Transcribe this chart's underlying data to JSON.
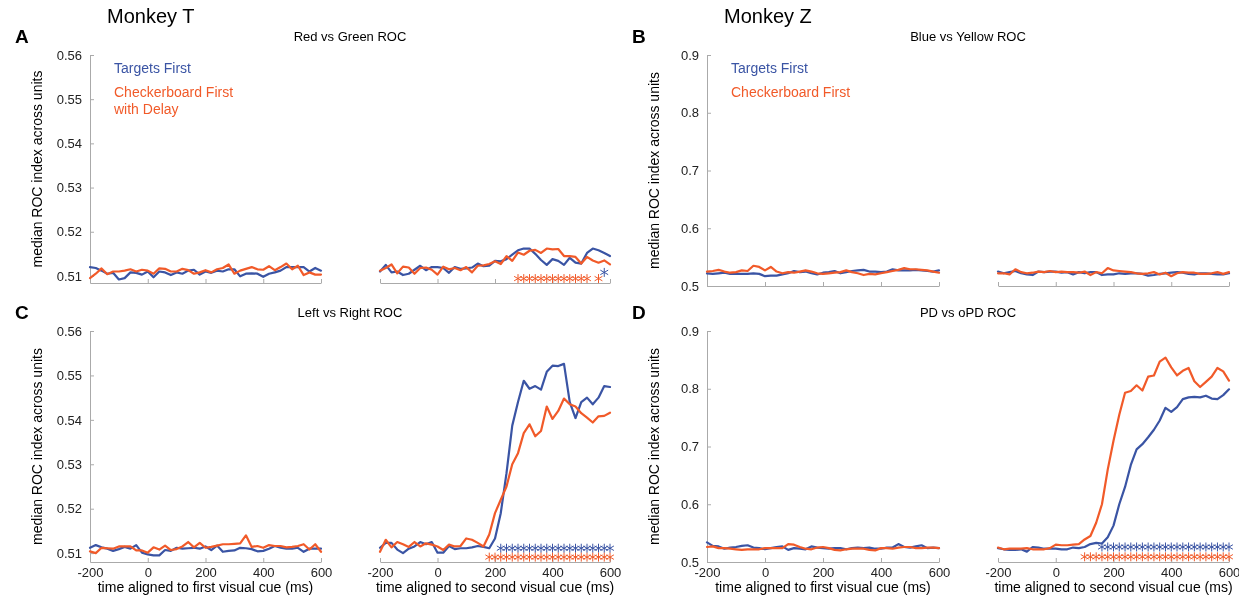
{
  "chart_data": [
    {
      "type": "line",
      "title": "Red vs Green ROC",
      "ylabel": "median ROC index across units",
      "annotations": [
        "A",
        "Monkey T"
      ],
      "legend": "top left",
      "tick_labels": "y",
      "xlim": [
        -200,
        600
      ],
      "xticks": [
        -200,
        0,
        200,
        400,
        600
      ],
      "ylim": [
        0.5084,
        0.56
      ],
      "yticks": [
        0.51,
        0.52,
        0.53,
        0.54,
        0.55,
        0.56
      ],
      "x": [
        -200,
        -180,
        -160,
        -140,
        -120,
        -100,
        -80,
        -60,
        -40,
        -20,
        0,
        20,
        40,
        60,
        80,
        100,
        120,
        140,
        160,
        180,
        200,
        220,
        240,
        260,
        280,
        300,
        320,
        340,
        360,
        380,
        400,
        420,
        440,
        460,
        480,
        500,
        520,
        540,
        560,
        580,
        600
      ],
      "series": [
        {
          "name": "Targets First",
          "color": "#3a54a4",
          "values": [
            0.512,
            0.5118,
            0.5112,
            0.5105,
            0.5107,
            0.5092,
            0.5095,
            0.5108,
            0.5107,
            0.5103,
            0.511,
            0.5097,
            0.511,
            0.5108,
            0.5102,
            0.5108,
            0.5105,
            0.5112,
            0.5114,
            0.5103,
            0.511,
            0.5107,
            0.5112,
            0.511,
            0.5115,
            0.5115,
            0.5099,
            0.5105,
            0.5106,
            0.5105,
            0.5098,
            0.5105,
            0.5108,
            0.5112,
            0.512,
            0.512,
            0.512,
            0.512,
            0.511,
            0.5118,
            0.5112
          ]
        },
        {
          "name": "Checkerboard First with Delay",
          "color": "#f15a29",
          "values": [
            0.5095,
            0.5105,
            0.5117,
            0.5104,
            0.511,
            0.511,
            0.5112,
            0.5115,
            0.511,
            0.5114,
            0.5112,
            0.5105,
            0.5117,
            0.5116,
            0.511,
            0.511,
            0.5116,
            0.5113,
            0.5105,
            0.5108,
            0.5113,
            0.5108,
            0.5115,
            0.5118,
            0.5126,
            0.5105,
            0.5112,
            0.5116,
            0.512,
            0.5115,
            0.5114,
            0.5122,
            0.5113,
            0.512,
            0.5128,
            0.5115,
            0.5123,
            0.5102,
            0.5108,
            0.5103,
            0.5103
          ]
        }
      ]
    },
    {
      "type": "line",
      "tick_labels": false,
      "xlim": [
        -200,
        600
      ],
      "xticks": [
        -200,
        0,
        200,
        400,
        600
      ],
      "ylim": [
        0.5084,
        0.56
      ],
      "x": [
        -200,
        -180,
        -160,
        -140,
        -120,
        -100,
        -80,
        -60,
        -40,
        -20,
        0,
        20,
        40,
        60,
        80,
        100,
        120,
        140,
        160,
        180,
        200,
        220,
        240,
        260,
        280,
        300,
        320,
        340,
        360,
        380,
        400,
        420,
        440,
        460,
        480,
        500,
        520,
        540,
        560,
        580,
        600
      ],
      "series": [
        {
          "color": "#3a54a4",
          "values": [
            0.511,
            0.5125,
            0.5108,
            0.511,
            0.5102,
            0.5105,
            0.5114,
            0.5123,
            0.5113,
            0.512,
            0.512,
            0.5118,
            0.5107,
            0.512,
            0.5116,
            0.5117,
            0.5119,
            0.5128,
            0.5122,
            0.5123,
            0.5134,
            0.5133,
            0.5138,
            0.5148,
            0.5158,
            0.5162,
            0.5162,
            0.515,
            0.5136,
            0.5125,
            0.5138,
            0.5134,
            0.5125,
            0.5141,
            0.513,
            0.5128,
            0.5152,
            0.5162,
            0.5158,
            0.5152,
            0.5145
          ]
        },
        {
          "color": "#f15a29",
          "values": [
            0.5112,
            0.5118,
            0.5126,
            0.5106,
            0.5121,
            0.5119,
            0.5105,
            0.5118,
            0.5119,
            0.5114,
            0.5103,
            0.5121,
            0.5115,
            0.5118,
            0.5113,
            0.512,
            0.5108,
            0.5123,
            0.5124,
            0.5127,
            0.5133,
            0.5127,
            0.5145,
            0.5134,
            0.5153,
            0.5148,
            0.5157,
            0.5159,
            0.5152,
            0.5162,
            0.516,
            0.5161,
            0.5145,
            0.5145,
            0.5143,
            0.5128,
            0.5143,
            0.5135,
            0.513,
            0.5135,
            0.5126
          ]
        },
        {
          "type": "scatter",
          "marker": "cross",
          "color": "#3a54a4",
          "x": [
            580
          ],
          "values": [
            0.5108
          ]
        },
        {
          "type": "scatter",
          "marker": "cross",
          "color": "#f15a29",
          "x": [
            280,
            300,
            320,
            340,
            360,
            380,
            400,
            420,
            440,
            460,
            480,
            500,
            520,
            560
          ],
          "values": [
            0.5094,
            0.5094,
            0.5094,
            0.5094,
            0.5094,
            0.5094,
            0.5094,
            0.5094,
            0.5094,
            0.5094,
            0.5094,
            0.5094,
            0.5094,
            0.5094
          ]
        }
      ]
    },
    {
      "type": "line",
      "title": "Blue vs Yellow ROC",
      "ylabel": "median ROC index across units",
      "annotations": [
        "B",
        "Monkey Z"
      ],
      "legend": "top left",
      "tick_labels": "y",
      "xlim": [
        -200,
        600
      ],
      "xticks": [
        -200,
        0,
        200,
        400,
        600
      ],
      "ylim": [
        0.5,
        0.9
      ],
      "yticks": [
        0.5,
        0.6,
        0.7,
        0.8,
        0.9
      ],
      "x": [
        -200,
        -180,
        -160,
        -140,
        -120,
        -100,
        -80,
        -60,
        -40,
        -20,
        0,
        20,
        40,
        60,
        80,
        100,
        120,
        140,
        160,
        180,
        200,
        220,
        240,
        260,
        280,
        300,
        320,
        340,
        360,
        380,
        400,
        420,
        440,
        460,
        480,
        500,
        520,
        540,
        560,
        580,
        600
      ],
      "series": [
        {
          "name": "Targets First",
          "color": "#3a54a4",
          "values": [
            0.522,
            0.521,
            0.522,
            0.523,
            0.521,
            0.521,
            0.521,
            0.521,
            0.522,
            0.521,
            0.517,
            0.518,
            0.518,
            0.52,
            0.522,
            0.526,
            0.524,
            0.525,
            0.522,
            0.52,
            0.523,
            0.524,
            0.526,
            0.522,
            0.524,
            0.526,
            0.527,
            0.528,
            0.525,
            0.525,
            0.524,
            0.525,
            0.529,
            0.527,
            0.527,
            0.527,
            0.528,
            0.527,
            0.526,
            0.525,
            0.527
          ]
        },
        {
          "name": "Checkerboard First",
          "color": "#f15a29",
          "values": [
            0.525,
            0.526,
            0.528,
            0.525,
            0.523,
            0.524,
            0.527,
            0.526,
            0.535,
            0.533,
            0.527,
            0.533,
            0.525,
            0.522,
            0.524,
            0.523,
            0.525,
            0.527,
            0.525,
            0.522,
            0.521,
            0.522,
            0.523,
            0.524,
            0.527,
            0.524,
            0.522,
            0.519,
            0.521,
            0.52,
            0.522,
            0.524,
            0.526,
            0.528,
            0.531,
            0.529,
            0.529,
            0.528,
            0.527,
            0.525,
            0.523
          ]
        }
      ]
    },
    {
      "type": "line",
      "tick_labels": false,
      "xlim": [
        -200,
        600
      ],
      "xticks": [
        -200,
        0,
        200,
        400,
        600
      ],
      "ylim": [
        0.5,
        0.9
      ],
      "x": [
        -200,
        -180,
        -160,
        -140,
        -120,
        -100,
        -80,
        -60,
        -40,
        -20,
        0,
        20,
        40,
        60,
        80,
        100,
        120,
        140,
        160,
        180,
        200,
        220,
        240,
        260,
        280,
        300,
        320,
        340,
        360,
        380,
        400,
        420,
        440,
        460,
        480,
        500,
        520,
        540,
        560,
        580,
        600
      ],
      "series": [
        {
          "color": "#3a54a4",
          "values": [
            0.525,
            0.522,
            0.524,
            0.526,
            0.522,
            0.52,
            0.519,
            0.525,
            0.524,
            0.525,
            0.525,
            0.523,
            0.524,
            0.52,
            0.524,
            0.522,
            0.524,
            0.524,
            0.519,
            0.52,
            0.52,
            0.522,
            0.521,
            0.522,
            0.522,
            0.521,
            0.518,
            0.519,
            0.521,
            0.522,
            0.523,
            0.524,
            0.523,
            0.521,
            0.52,
            0.522,
            0.522,
            0.521,
            0.52,
            0.52,
            0.522
          ]
        },
        {
          "color": "#f15a29",
          "values": [
            0.522,
            0.522,
            0.52,
            0.529,
            0.524,
            0.522,
            0.523,
            0.525,
            0.524,
            0.526,
            0.524,
            0.525,
            0.524,
            0.524,
            0.523,
            0.525,
            0.519,
            0.524,
            0.522,
            0.531,
            0.527,
            0.526,
            0.525,
            0.524,
            0.522,
            0.521,
            0.522,
            0.524,
            0.52,
            0.523,
            0.517,
            0.522,
            0.524,
            0.523,
            0.523,
            0.521,
            0.521,
            0.522,
            0.524,
            0.521,
            0.524
          ]
        }
      ]
    },
    {
      "type": "line",
      "title": "Left vs Right ROC",
      "ylabel": "median ROC index across units",
      "xlabel": "time aligned to first visual cue (ms)",
      "annotations": [
        "C"
      ],
      "xlim": [
        -200,
        600
      ],
      "xticks": [
        -200,
        0,
        200,
        400,
        600
      ],
      "ylim": [
        0.508,
        0.56
      ],
      "yticks": [
        0.51,
        0.52,
        0.53,
        0.54,
        0.55,
        0.56
      ],
      "x": [
        -200,
        -180,
        -160,
        -140,
        -120,
        -100,
        -80,
        -60,
        -40,
        -20,
        0,
        20,
        40,
        60,
        80,
        100,
        120,
        140,
        160,
        180,
        200,
        220,
        240,
        260,
        280,
        300,
        320,
        340,
        360,
        380,
        400,
        420,
        440,
        460,
        480,
        500,
        520,
        540,
        560,
        580,
        600
      ],
      "series": [
        {
          "color": "#3a54a4",
          "values": [
            0.5112,
            0.5118,
            0.5113,
            0.511,
            0.5105,
            0.5109,
            0.5114,
            0.511,
            0.5118,
            0.5101,
            0.5097,
            0.5095,
            0.5095,
            0.5107,
            0.5105,
            0.5112,
            0.511,
            0.5111,
            0.5112,
            0.511,
            0.5115,
            0.5107,
            0.5117,
            0.5103,
            0.5105,
            0.5106,
            0.5112,
            0.5111,
            0.5109,
            0.5104,
            0.5105,
            0.511,
            0.5116,
            0.5112,
            0.511,
            0.511,
            0.5112,
            0.5103,
            0.511,
            0.511,
            0.511
          ]
        },
        {
          "color": "#f15a29",
          "values": [
            0.5104,
            0.51,
            0.5112,
            0.5111,
            0.511,
            0.5115,
            0.5115,
            0.5115,
            0.5106,
            0.5106,
            0.5101,
            0.5113,
            0.5108,
            0.5117,
            0.5107,
            0.5109,
            0.5115,
            0.5125,
            0.5113,
            0.5123,
            0.5112,
            0.5114,
            0.5117,
            0.512,
            0.512,
            0.5121,
            0.5122,
            0.514,
            0.5114,
            0.5116,
            0.5112,
            0.5118,
            0.5116,
            0.5116,
            0.5113,
            0.5114,
            0.5116,
            0.512,
            0.5108,
            0.512,
            0.5103
          ]
        }
      ]
    },
    {
      "type": "line",
      "tick_labels": "x",
      "xlabel": "time aligned to second visual cue (ms)",
      "xlim": [
        -200,
        600
      ],
      "xticks": [
        -200,
        0,
        200,
        400,
        600
      ],
      "ylim": [
        0.508,
        0.56
      ],
      "x": [
        -200,
        -180,
        -160,
        -140,
        -120,
        -100,
        -80,
        -60,
        -40,
        -20,
        0,
        20,
        40,
        60,
        80,
        100,
        120,
        140,
        160,
        180,
        200,
        220,
        240,
        260,
        280,
        300,
        320,
        340,
        360,
        380,
        400,
        420,
        440,
        460,
        480,
        500,
        520,
        540,
        560,
        580,
        600
      ],
      "series": [
        {
          "color": "#3a54a4",
          "values": [
            0.5112,
            0.5123,
            0.5123,
            0.5108,
            0.51,
            0.511,
            0.5115,
            0.5125,
            0.512,
            0.5125,
            0.5101,
            0.5101,
            0.5116,
            0.5109,
            0.5111,
            0.5111,
            0.5113,
            0.5116,
            0.5114,
            0.5111,
            0.5133,
            0.519,
            0.528,
            0.5387,
            0.544,
            0.5488,
            0.547,
            0.5476,
            0.5468,
            0.5508,
            0.5522,
            0.5521,
            0.5526,
            0.544,
            0.5404,
            0.544,
            0.545,
            0.5435,
            0.545,
            0.5476,
            0.5474
          ]
        },
        {
          "color": "#f15a29",
          "values": [
            0.5103,
            0.513,
            0.5113,
            0.5125,
            0.512,
            0.5114,
            0.5125,
            0.5115,
            0.5122,
            0.5119,
            0.5115,
            0.5107,
            0.5119,
            0.5115,
            0.5116,
            0.5133,
            0.513,
            0.5123,
            0.5115,
            0.5142,
            0.519,
            0.522,
            0.525,
            0.53,
            0.5325,
            0.537,
            0.539,
            0.5363,
            0.5375,
            0.543,
            0.5402,
            0.542,
            0.5448,
            0.5435,
            0.543,
            0.5415,
            0.5405,
            0.5394,
            0.5408,
            0.5409,
            0.5416
          ]
        },
        {
          "type": "scatter",
          "marker": "cross",
          "color": "#3a54a4",
          "x": [
            220,
            240,
            260,
            280,
            300,
            320,
            340,
            360,
            380,
            400,
            420,
            440,
            460,
            480,
            500,
            520,
            540,
            560,
            580,
            600
          ],
          "values": [
            0.5111,
            0.5111,
            0.5111,
            0.5111,
            0.5111,
            0.5111,
            0.5111,
            0.5111,
            0.5111,
            0.5111,
            0.5111,
            0.5111,
            0.5111,
            0.5111,
            0.5111,
            0.5111,
            0.5111,
            0.5111,
            0.5111,
            0.5111
          ]
        },
        {
          "type": "scatter",
          "marker": "cross",
          "color": "#f15a29",
          "x": [
            180,
            200,
            220,
            240,
            260,
            280,
            300,
            320,
            340,
            360,
            380,
            400,
            420,
            440,
            460,
            480,
            500,
            520,
            540,
            560,
            580,
            600
          ],
          "values": [
            0.5091,
            0.5091,
            0.5091,
            0.5091,
            0.5091,
            0.5091,
            0.5091,
            0.5091,
            0.5091,
            0.5091,
            0.5091,
            0.5091,
            0.5091,
            0.5091,
            0.5091,
            0.5091,
            0.5091,
            0.5091,
            0.5091,
            0.5091,
            0.5091,
            0.5091
          ]
        }
      ]
    },
    {
      "type": "line",
      "title": "PD vs oPD ROC",
      "ylabel": "median ROC index across units",
      "xlabel": "time aligned to first visual cue (ms)",
      "annotations": [
        "D"
      ],
      "xlim": [
        -200,
        600
      ],
      "xticks": [
        -200,
        0,
        200,
        400,
        600
      ],
      "ylim": [
        0.5,
        0.9
      ],
      "yticks": [
        0.5,
        0.6,
        0.7,
        0.8,
        0.9
      ],
      "x": [
        -200,
        -180,
        -160,
        -140,
        -120,
        -100,
        -80,
        -60,
        -40,
        -20,
        0,
        20,
        40,
        60,
        80,
        100,
        120,
        140,
        160,
        180,
        200,
        220,
        240,
        260,
        280,
        300,
        320,
        340,
        360,
        380,
        400,
        420,
        440,
        460,
        480,
        500,
        520,
        540,
        560,
        580,
        600
      ],
      "series": [
        {
          "color": "#3a54a4",
          "values": [
            0.534,
            0.528,
            0.527,
            0.523,
            0.525,
            0.526,
            0.528,
            0.529,
            0.525,
            0.524,
            0.522,
            0.524,
            0.526,
            0.527,
            0.521,
            0.524,
            0.523,
            0.522,
            0.527,
            0.525,
            0.524,
            0.523,
            0.524,
            0.524,
            0.522,
            0.524,
            0.525,
            0.524,
            0.525,
            0.523,
            0.523,
            0.525,
            0.525,
            0.531,
            0.526,
            0.525,
            0.527,
            0.529,
            0.524,
            0.525,
            0.524
          ]
        },
        {
          "color": "#f15a29",
          "values": [
            0.526,
            0.527,
            0.524,
            0.524,
            0.523,
            0.522,
            0.521,
            0.522,
            0.522,
            0.522,
            0.524,
            0.524,
            0.524,
            0.524,
            0.531,
            0.53,
            0.526,
            0.523,
            0.522,
            0.525,
            0.526,
            0.524,
            0.521,
            0.52,
            0.522,
            0.523,
            0.523,
            0.523,
            0.521,
            0.52,
            0.524,
            0.524,
            0.523,
            0.525,
            0.526,
            0.526,
            0.524,
            0.524,
            0.525,
            0.525,
            0.524
          ]
        }
      ]
    },
    {
      "type": "line",
      "tick_labels": "x",
      "xlabel": "time aligned to second visual cue (ms)",
      "xlim": [
        -200,
        600
      ],
      "xticks": [
        -200,
        0,
        200,
        400,
        600
      ],
      "ylim": [
        0.5,
        0.9
      ],
      "x": [
        -200,
        -180,
        -160,
        -140,
        -120,
        -100,
        -80,
        -60,
        -40,
        -20,
        0,
        20,
        40,
        60,
        80,
        100,
        120,
        140,
        160,
        180,
        200,
        220,
        240,
        260,
        280,
        300,
        320,
        340,
        360,
        380,
        400,
        420,
        440,
        460,
        480,
        500,
        520,
        540,
        560,
        580,
        600
      ],
      "series": [
        {
          "color": "#3a54a4",
          "values": [
            0.524,
            0.522,
            0.521,
            0.521,
            0.522,
            0.518,
            0.526,
            0.525,
            0.523,
            0.523,
            0.523,
            0.522,
            0.522,
            0.525,
            0.524,
            0.526,
            0.531,
            0.533,
            0.532,
            0.543,
            0.563,
            0.6,
            0.63,
            0.668,
            0.695,
            0.704,
            0.716,
            0.729,
            0.745,
            0.767,
            0.76,
            0.768,
            0.782,
            0.785,
            0.786,
            0.785,
            0.788,
            0.783,
            0.782,
            0.789,
            0.799
          ]
        },
        {
          "color": "#f15a29",
          "values": [
            0.525,
            0.522,
            0.523,
            0.523,
            0.523,
            0.524,
            0.522,
            0.522,
            0.522,
            0.524,
            0.53,
            0.529,
            0.529,
            0.53,
            0.531,
            0.539,
            0.545,
            0.568,
            0.6,
            0.66,
            0.71,
            0.755,
            0.793,
            0.796,
            0.806,
            0.797,
            0.821,
            0.823,
            0.847,
            0.854,
            0.837,
            0.823,
            0.831,
            0.836,
            0.813,
            0.803,
            0.812,
            0.821,
            0.836,
            0.83,
            0.814
          ]
        },
        {
          "type": "scatter",
          "marker": "cross",
          "color": "#3a54a4",
          "x": [
            160,
            180,
            200,
            220,
            240,
            260,
            280,
            300,
            320,
            340,
            360,
            380,
            400,
            420,
            440,
            460,
            480,
            500,
            520,
            540,
            560,
            580,
            600
          ],
          "values": [
            0.526,
            0.526,
            0.526,
            0.526,
            0.526,
            0.526,
            0.526,
            0.526,
            0.526,
            0.526,
            0.526,
            0.526,
            0.526,
            0.526,
            0.526,
            0.526,
            0.526,
            0.526,
            0.526,
            0.526,
            0.526,
            0.526,
            0.526
          ]
        },
        {
          "type": "scatter",
          "marker": "cross",
          "color": "#f15a29",
          "x": [
            100,
            120,
            140,
            160,
            180,
            200,
            220,
            240,
            260,
            280,
            300,
            320,
            340,
            360,
            380,
            400,
            420,
            440,
            460,
            480,
            500,
            520,
            540,
            560,
            580,
            600
          ],
          "values": [
            0.509,
            0.509,
            0.509,
            0.509,
            0.509,
            0.509,
            0.509,
            0.509,
            0.509,
            0.509,
            0.509,
            0.509,
            0.509,
            0.509,
            0.509,
            0.509,
            0.509,
            0.509,
            0.509,
            0.509,
            0.509,
            0.509,
            0.509,
            0.509,
            0.509,
            0.509
          ]
        }
      ]
    }
  ]
}
